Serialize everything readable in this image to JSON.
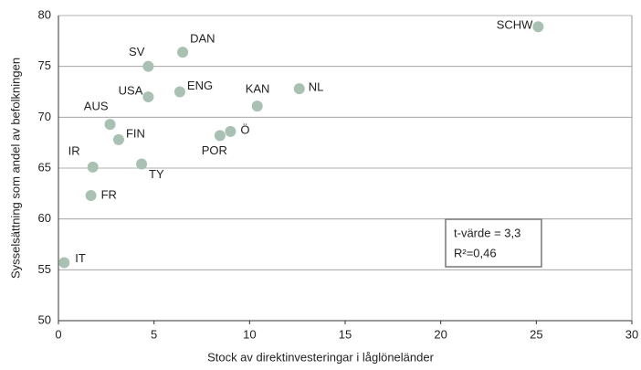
{
  "chart_data": {
    "type": "scatter",
    "xlabel": "Stock av direktinvesteringar i låglöneländer",
    "ylabel": "Sysselsättning som andel av befolkningen",
    "labels": [
      "SCHW",
      "DAN",
      "SV",
      "USA",
      "ENG",
      "KAN",
      "NL",
      "AUS",
      "FIN",
      "Ö",
      "POR",
      "IR",
      "TY",
      "FR",
      "IT"
    ],
    "x": [
      25.1,
      6.5,
      4.7,
      4.7,
      6.35,
      10.4,
      12.6,
      2.7,
      3.15,
      9.0,
      8.45,
      1.8,
      4.35,
      1.7,
      0.3
    ],
    "values": [
      78.9,
      76.4,
      75.0,
      72.0,
      72.5,
      71.1,
      72.8,
      69.3,
      67.8,
      68.6,
      68.2,
      65.1,
      65.4,
      62.3,
      55.7
    ],
    "color": "#a9c1b2",
    "xlim": [
      0,
      30
    ],
    "xticks": [
      0,
      5,
      10,
      15,
      20,
      25,
      30
    ],
    "ylim": [
      50,
      80
    ],
    "yticks": [
      50,
      55,
      60,
      65,
      70,
      75,
      80
    ],
    "grid": true,
    "annotation": [
      "t-värde = 3,3",
      "R²=0,46"
    ]
  }
}
